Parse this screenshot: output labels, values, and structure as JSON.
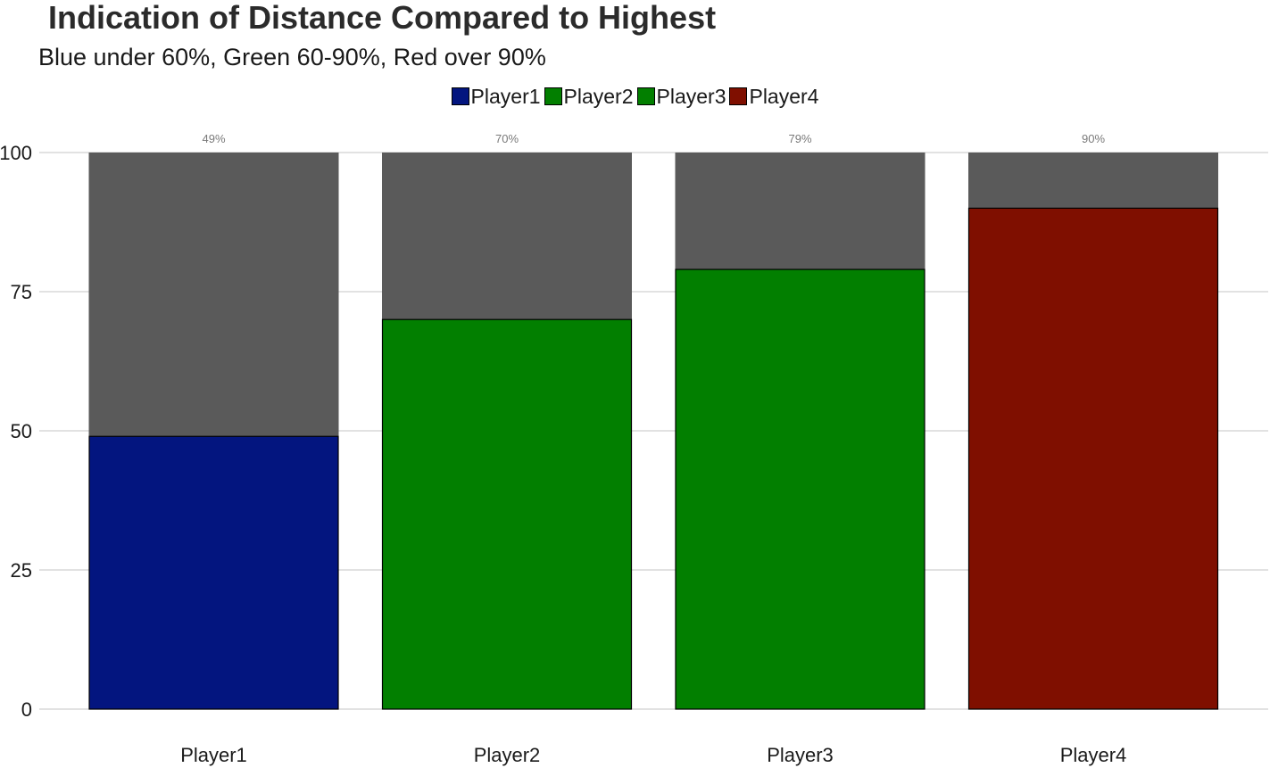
{
  "chart_data": {
    "type": "bar",
    "title": "Indication of Distance Compared to Highest",
    "subtitle": "Blue under 60%, Green 60-90%, Red over 90%",
    "xlabel": "",
    "ylabel": "",
    "ylim": [
      0,
      100
    ],
    "yticks": [
      "0",
      "25",
      "50",
      "75",
      "100"
    ],
    "categories": [
      "Player1",
      "Player2",
      "Player3",
      "Player4"
    ],
    "values": [
      49,
      70,
      79,
      90
    ],
    "background_values": [
      100,
      100,
      100,
      100
    ],
    "data_labels": [
      "49%",
      "70%",
      "79%",
      "90%"
    ],
    "bar_colors": [
      "#03157f",
      "#027f00",
      "#027f00",
      "#7f0f00"
    ],
    "background_color": "#5a5a5a",
    "legend": {
      "position": "top",
      "entries": [
        {
          "label": "Player1",
          "color": "#03157f"
        },
        {
          "label": "Player2",
          "color": "#027f00"
        },
        {
          "label": "Player3",
          "color": "#027f00"
        },
        {
          "label": "Player4",
          "color": "#7f0f00"
        }
      ]
    },
    "grid": true
  }
}
